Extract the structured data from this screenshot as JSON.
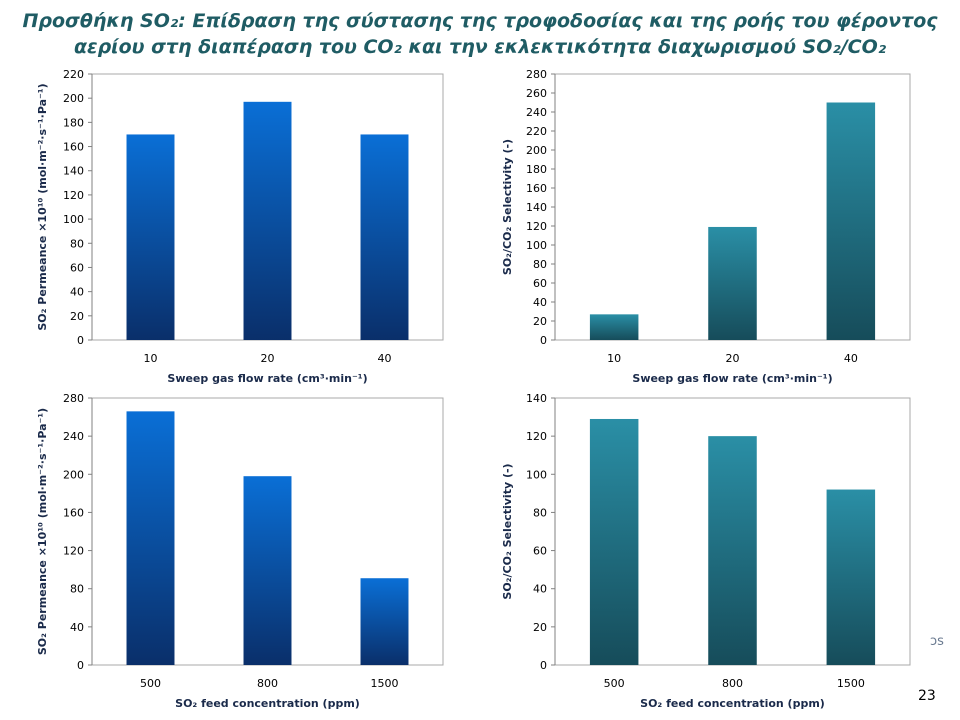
{
  "slide": {
    "title_line1": "Προσθήκη SO₂: Επίδραση της σύστασης της τροφοδοσίας και της ροής του φέροντος",
    "title_line2": "αερίου στη διαπέραση του CO₂ και την εκλεκτικότητα διαχωρισμού SO₂/CO₂",
    "page_number": "23",
    "corner_mark": "ɔs"
  },
  "colors": {
    "title": "#1f5c64",
    "blue_top": "#0a6fd6",
    "blue_bottom": "#0a2f6a",
    "teal_top": "#2a8fa6",
    "teal_bottom": "#164c5a"
  },
  "chart_data": [
    {
      "type": "bar",
      "categories": [
        "10",
        "20",
        "40"
      ],
      "values": [
        170,
        197,
        170
      ],
      "xlabel": "Sweep gas flow rate (cm³·min⁻¹)",
      "ylabel": "SO₂ Permeance ×10¹⁰ (mol·m⁻²·s⁻¹·Pa⁻¹)",
      "ylim": [
        0,
        220
      ],
      "yticks": [
        0,
        20,
        40,
        60,
        80,
        100,
        120,
        140,
        160,
        180,
        200,
        220
      ],
      "color": "blue",
      "grid": false
    },
    {
      "type": "bar",
      "categories": [
        "10",
        "20",
        "40"
      ],
      "values": [
        27,
        119,
        250
      ],
      "xlabel": "Sweep gas flow rate (cm³·min⁻¹)",
      "ylabel": "SO₂/CO₂ Selectivity (-)",
      "ylim": [
        0,
        280
      ],
      "yticks": [
        0,
        20,
        40,
        60,
        80,
        100,
        120,
        140,
        160,
        180,
        200,
        220,
        240,
        260,
        280
      ],
      "color": "teal",
      "grid": false
    },
    {
      "type": "bar",
      "categories": [
        "500",
        "800",
        "1500"
      ],
      "values": [
        266,
        198,
        91
      ],
      "xlabel": "SO₂ feed concentration (ppm)",
      "ylabel": "SO₂ Permeance ×10¹⁰ (mol·m⁻²·s⁻¹·Pa⁻¹)",
      "ylim": [
        0,
        280
      ],
      "yticks": [
        0,
        40,
        80,
        120,
        160,
        200,
        240,
        280
      ],
      "color": "blue",
      "grid": false
    },
    {
      "type": "bar",
      "categories": [
        "500",
        "800",
        "1500"
      ],
      "values": [
        129,
        120,
        92
      ],
      "xlabel": "SO₂ feed concentration (ppm)",
      "ylabel": "SO₂/CO₂ Selectivity (-)",
      "ylim": [
        0,
        140
      ],
      "yticks": [
        0,
        20,
        40,
        60,
        80,
        100,
        120,
        140
      ],
      "color": "teal",
      "grid": false
    }
  ]
}
